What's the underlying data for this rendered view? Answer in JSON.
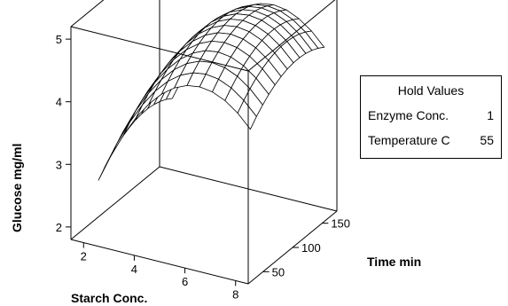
{
  "chart_data": {
    "type": "surface",
    "zlabel": "Glucose mg/ml",
    "xlabel": "Starch Conc.",
    "ylabel": "Time min",
    "x_ticks": [
      "2",
      "4",
      "6",
      "8"
    ],
    "y_ticks": [
      "50",
      "100",
      "150"
    ],
    "z_ticks": [
      "2",
      "3",
      "4",
      "5"
    ],
    "xlim": [
      1.5,
      8.5
    ],
    "ylim": [
      25,
      175
    ],
    "zlim": [
      1.8,
      5.2
    ],
    "x_range": [
      2,
      8
    ],
    "y_range": [
      50,
      175
    ],
    "surface_model": "peak ~5.0 mg/ml near starch 6, time 130; ~1.9 mg/ml at starch 2, time 50",
    "grid_size": [
      13,
      13
    ]
  },
  "hold_values": {
    "title": "Hold Values",
    "rows": [
      {
        "label": "Enzyme Conc.",
        "value": "1"
      },
      {
        "label": "Temperature C",
        "value": "55"
      }
    ]
  }
}
